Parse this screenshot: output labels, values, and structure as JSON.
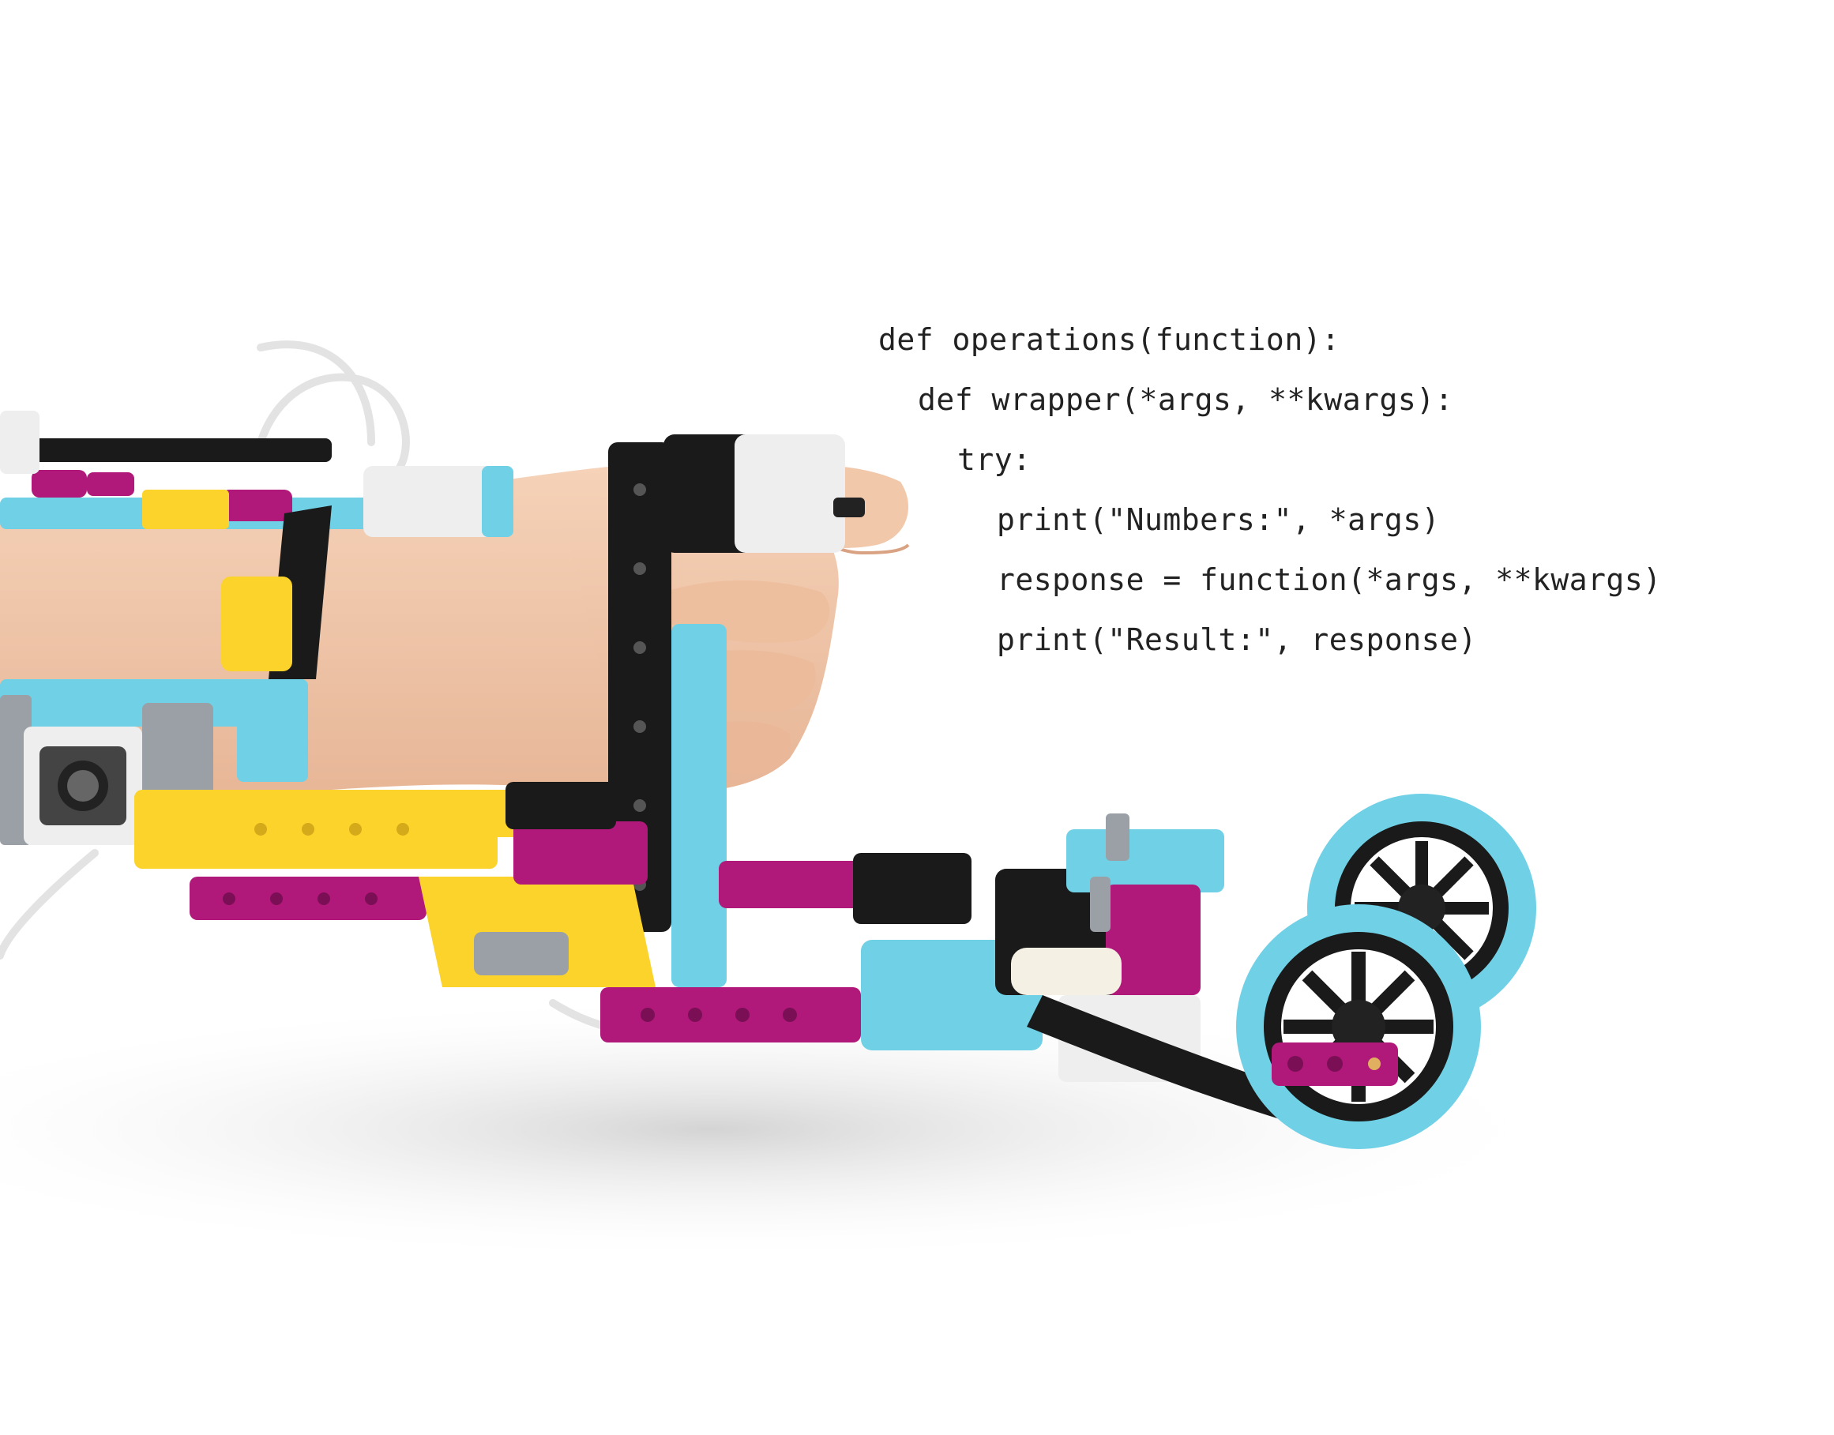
{
  "code": {
    "lines": [
      {
        "indent": 0,
        "text": "def operations(function):"
      },
      {
        "indent": 1,
        "text": "def wrapper(*args, **kwargs):"
      },
      {
        "indent": 2,
        "text": "try:"
      },
      {
        "indent": 3,
        "text": "print(\"Numbers:\", *args)"
      },
      {
        "indent": 3,
        "text": "response = function(*args, **kwargs)"
      },
      {
        "indent": 3,
        "text": "print(\"Result:\", response)"
      }
    ]
  },
  "colors": {
    "background": "#ffffff",
    "code_text": "#222222",
    "brick_cyan": "#6fd0e6",
    "brick_magenta": "#b0187a",
    "brick_yellow": "#fbd32a",
    "brick_black": "#1a1a1a",
    "brick_white": "#eeeeee",
    "brick_gray": "#9aa0a6",
    "skin": "#f0c6a8",
    "shadow": "#d8d8d8"
  }
}
